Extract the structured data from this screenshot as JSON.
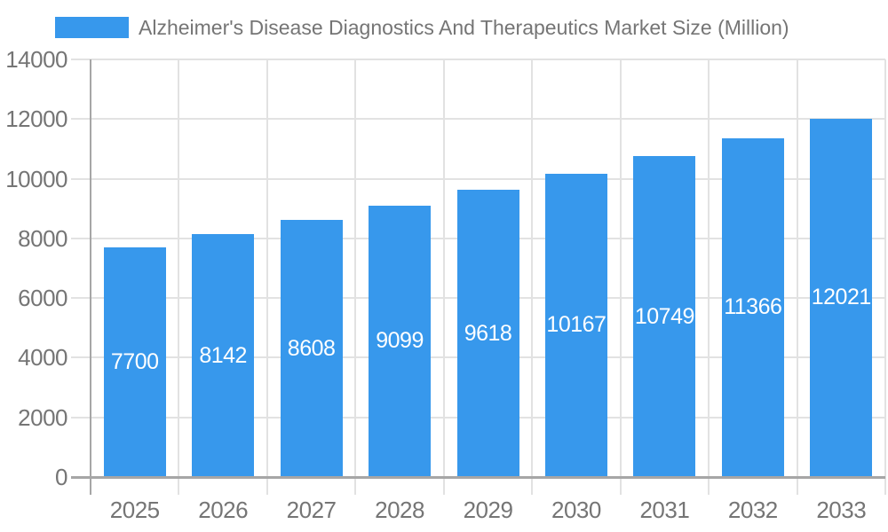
{
  "legend": {
    "label": "Alzheimer's Disease Diagnostics And Therapeutics Market Size (Million)",
    "swatch_icon": "legend-color-swatch"
  },
  "chart_data": {
    "type": "bar",
    "title": "Alzheimer's Disease Diagnostics And Therapeutics Market Size (Million)",
    "categories": [
      "2025",
      "2026",
      "2027",
      "2028",
      "2029",
      "2030",
      "2031",
      "2032",
      "2033"
    ],
    "values": [
      7700,
      8142,
      8608,
      9099,
      9618,
      10167,
      10749,
      11366,
      12021
    ],
    "series": [
      {
        "name": "Alzheimer's Disease Diagnostics And Therapeutics Market Size (Million)",
        "values": [
          7700,
          8142,
          8608,
          9099,
          9618,
          10167,
          10749,
          11366,
          12021
        ]
      }
    ],
    "xlabel": "",
    "ylabel": "",
    "ylim": [
      0,
      14000
    ],
    "yticks": [
      0,
      2000,
      4000,
      6000,
      8000,
      10000,
      12000,
      14000
    ],
    "grid": true,
    "legend_position": "top-left",
    "value_labels": "inside-center",
    "colors": {
      "bar": "#3798ec",
      "bar_label_text": "#ffffff",
      "axis_text": "#757575",
      "grid_line": "#e2e2e2",
      "axis_line": "#a6a6a6",
      "background": "#ffffff"
    }
  }
}
